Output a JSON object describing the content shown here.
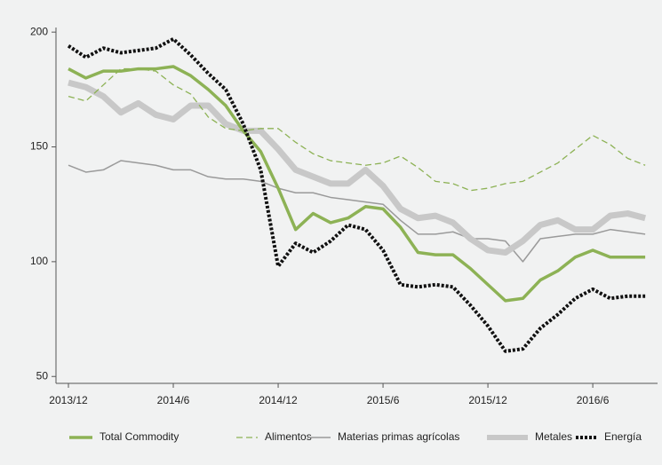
{
  "chart_data": {
    "type": "line",
    "categories": [
      "2013/12",
      null,
      null,
      null,
      null,
      null,
      "2014/6",
      null,
      null,
      null,
      null,
      null,
      "2014/12",
      null,
      null,
      null,
      null,
      null,
      "2015/6",
      null,
      null,
      null,
      null,
      null,
      "2015/12",
      null,
      null,
      null,
      null,
      null,
      "2016/6",
      null,
      null,
      null
    ],
    "ylim": [
      47,
      202
    ],
    "yticks": [
      50,
      100,
      150,
      200
    ],
    "series": [
      {
        "name": "Total Commodity",
        "color": "#8db255",
        "values": [
          184,
          180,
          183,
          183,
          184,
          184,
          185,
          181,
          175,
          168,
          157,
          148,
          132,
          114,
          121,
          117,
          119,
          124,
          123,
          115,
          104,
          103,
          103,
          97,
          90,
          83,
          84,
          92,
          96,
          102,
          105,
          102,
          102,
          102
        ]
      },
      {
        "name": "Alimentos",
        "color": "#8db255",
        "values": [
          172,
          170,
          177,
          184,
          184,
          183,
          177,
          173,
          163,
          158,
          157,
          158,
          158,
          152,
          147,
          144,
          143,
          142,
          143,
          146,
          141,
          135,
          134,
          131,
          132,
          134,
          135,
          139,
          143,
          149,
          155,
          151,
          145,
          142
        ]
      },
      {
        "name": "Materias primas agrícolas",
        "color": "#9a9a9a",
        "values": [
          142,
          139,
          140,
          144,
          143,
          142,
          140,
          140,
          137,
          136,
          136,
          135,
          132,
          130,
          130,
          128,
          127,
          126,
          125,
          118,
          112,
          112,
          113,
          110,
          110,
          109,
          100,
          110,
          111,
          112,
          112,
          114,
          113,
          112
        ]
      },
      {
        "name": "Metales",
        "color": "#c8c8c8",
        "values": [
          178,
          176,
          172,
          165,
          169,
          164,
          162,
          168,
          168,
          160,
          157,
          157,
          149,
          140,
          137,
          134,
          134,
          140,
          133,
          123,
          119,
          120,
          117,
          110,
          105,
          104,
          109,
          116,
          118,
          114,
          114,
          120,
          121,
          119
        ]
      },
      {
        "name": "Energía",
        "color": "#111111",
        "values": [
          194,
          189,
          193,
          191,
          192,
          193,
          197,
          190,
          182,
          175,
          160,
          140,
          98,
          108,
          104,
          109,
          116,
          114,
          105,
          90,
          89,
          90,
          89,
          81,
          72,
          61,
          62,
          71,
          77,
          84,
          88,
          84,
          85,
          85
        ]
      }
    ]
  }
}
